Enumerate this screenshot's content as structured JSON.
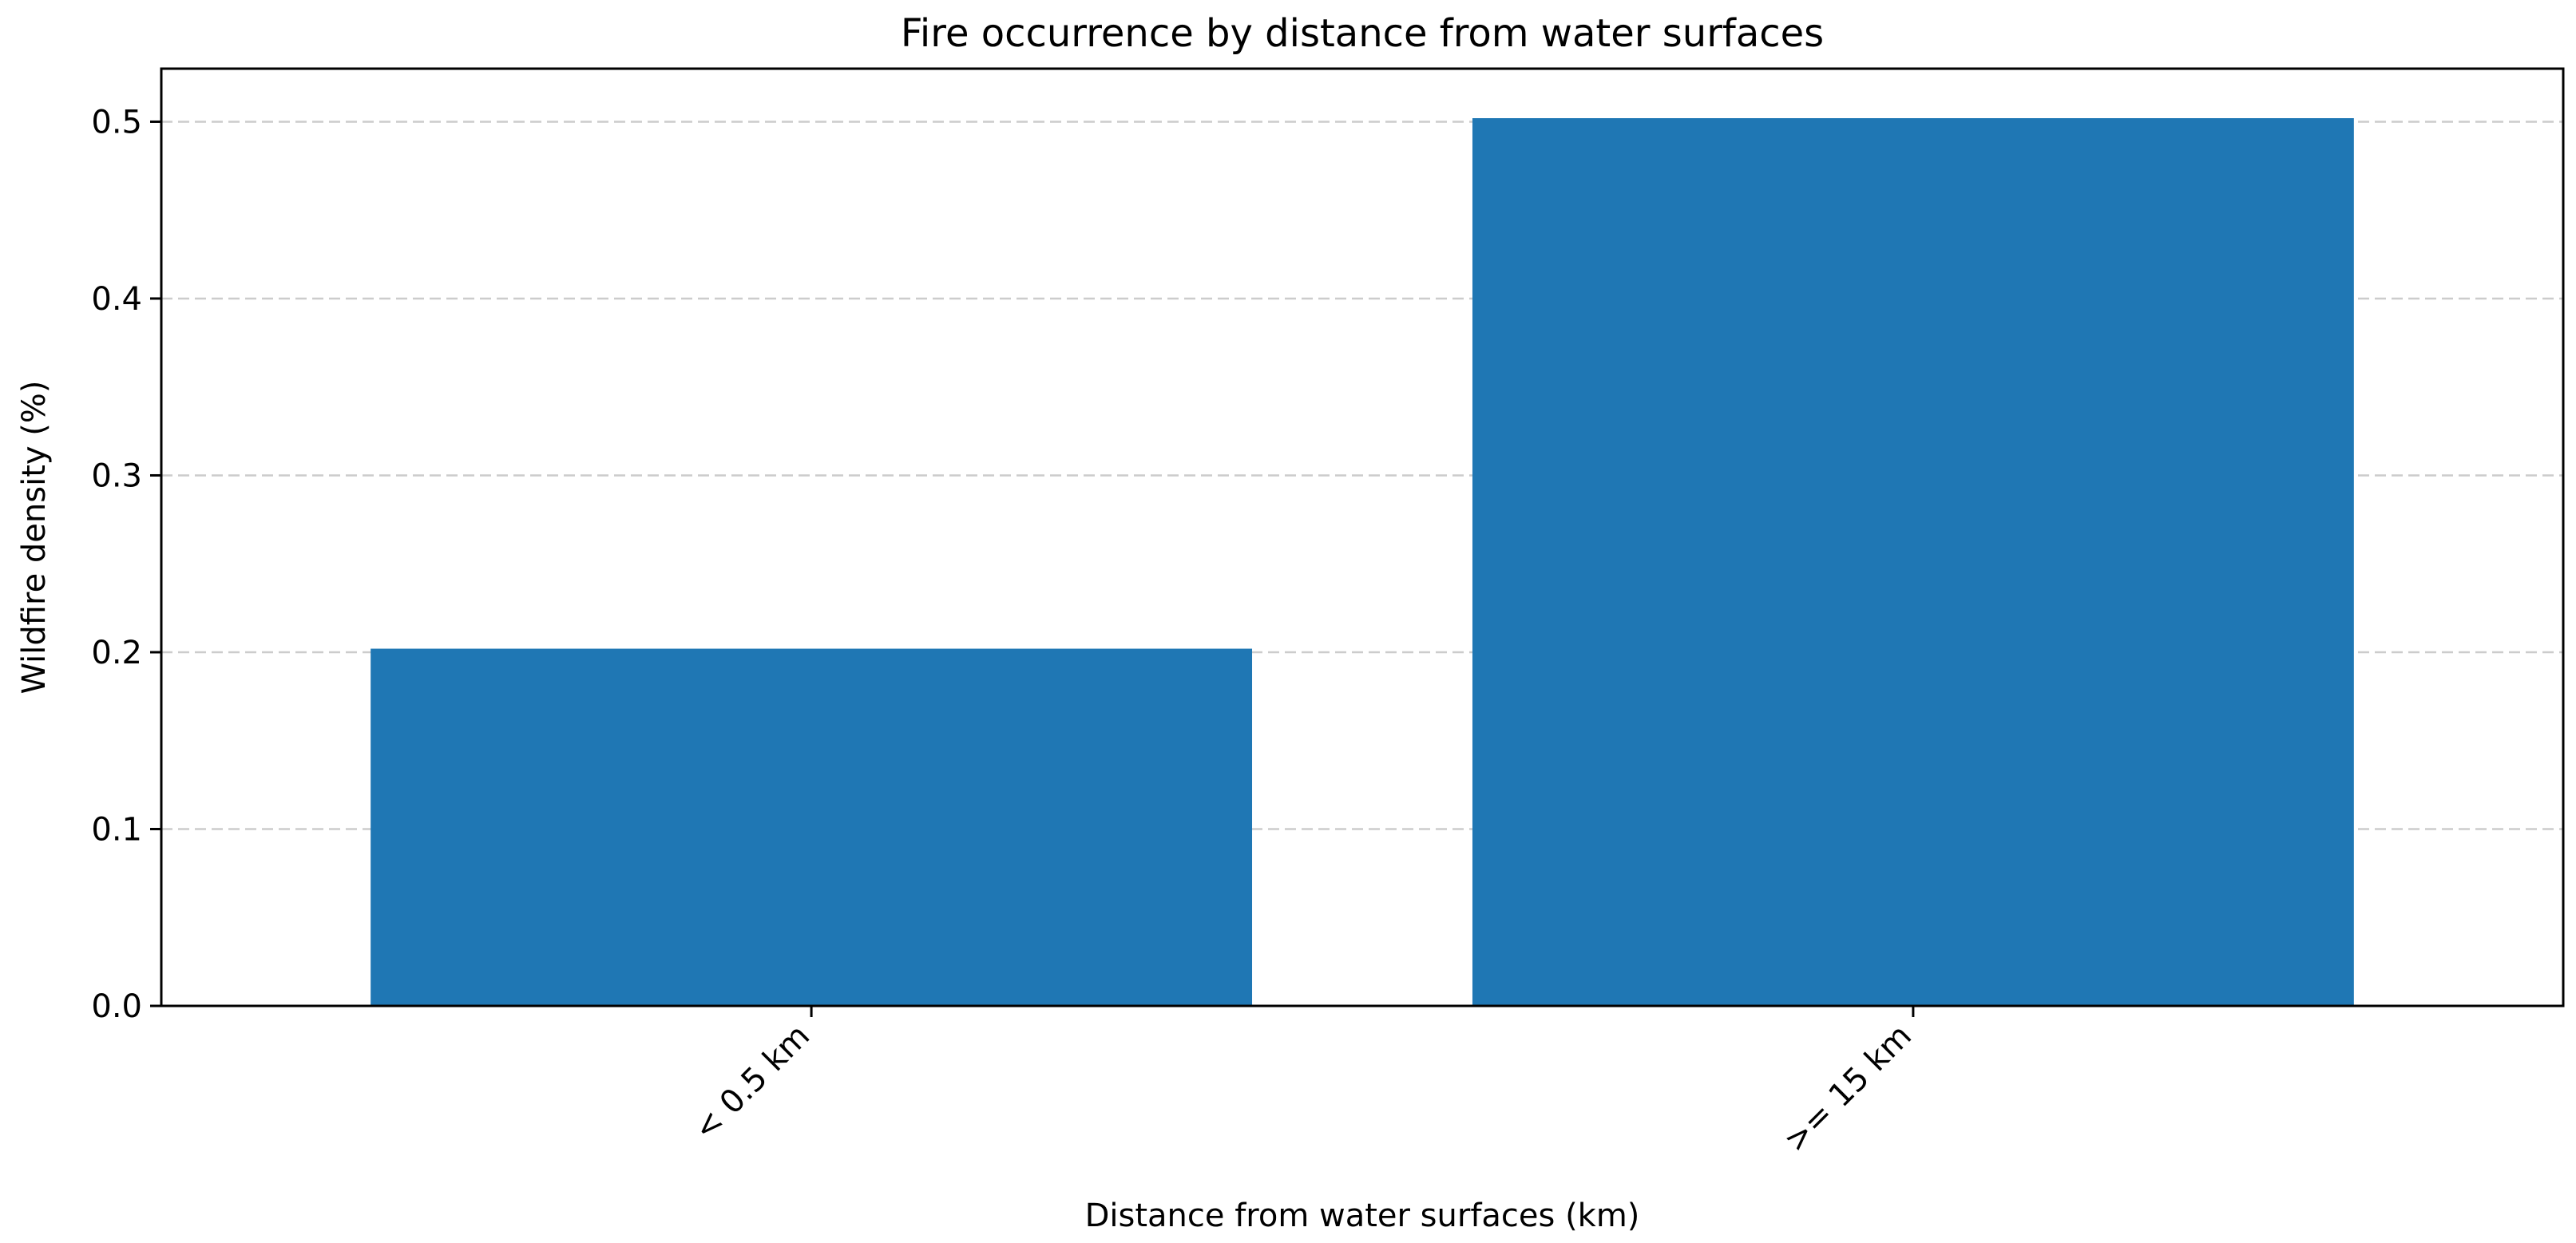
{
  "chart_data": {
    "type": "bar",
    "title": "Fire occurrence by distance from water surfaces",
    "xlabel": "Distance from water surfaces (km)",
    "ylabel": "Wildfire density (%)",
    "categories": [
      "< 0.5 km",
      ">= 15 km"
    ],
    "values": [
      0.202,
      0.502
    ],
    "ylim": [
      0,
      0.53
    ],
    "yticks": [
      0.0,
      0.1,
      0.2,
      0.3,
      0.4,
      0.5
    ],
    "ytick_labels": [
      "0.0",
      "0.1",
      "0.2",
      "0.3",
      "0.4",
      "0.5"
    ],
    "grid": "y-dashed",
    "legend": "none",
    "bar_color": "#1f77b4"
  }
}
